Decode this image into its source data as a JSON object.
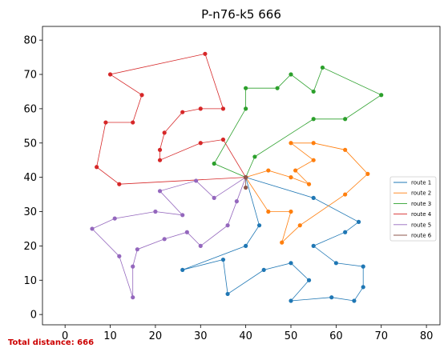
{
  "chart_data": {
    "type": "line",
    "title": "P-n76-k5 666",
    "xlabel": "",
    "ylabel": "",
    "xlim": [
      -5,
      83
    ],
    "ylim": [
      -3,
      84
    ],
    "xticks": [
      0,
      10,
      20,
      30,
      40,
      50,
      60,
      70,
      80
    ],
    "yticks": [
      0,
      10,
      20,
      30,
      40,
      50,
      60,
      70,
      80
    ],
    "grid": false,
    "legend_position": "right",
    "depot": [
      40,
      40
    ],
    "series": [
      {
        "name": "route 1",
        "color": "#1f77b4",
        "points": [
          [
            40,
            40
          ],
          [
            55,
            34
          ],
          [
            65,
            27
          ],
          [
            62,
            24
          ],
          [
            55,
            20
          ],
          [
            60,
            15
          ],
          [
            66,
            14
          ],
          [
            66,
            8
          ],
          [
            64,
            4
          ],
          [
            59,
            5
          ],
          [
            50,
            4
          ],
          [
            54,
            10
          ],
          [
            50,
            15
          ],
          [
            44,
            13
          ],
          [
            36,
            6
          ],
          [
            35,
            16
          ],
          [
            26,
            13
          ],
          [
            40,
            20
          ],
          [
            43,
            26
          ],
          [
            40,
            40
          ]
        ]
      },
      {
        "name": "route 2",
        "color": "#ff7f0e",
        "points": [
          [
            40,
            40
          ],
          [
            45,
            30
          ],
          [
            50,
            30
          ],
          [
            48,
            21
          ],
          [
            52,
            26
          ],
          [
            62,
            35
          ],
          [
            67,
            41
          ],
          [
            62,
            48
          ],
          [
            55,
            50
          ],
          [
            50,
            50
          ],
          [
            55,
            45
          ],
          [
            51,
            42
          ],
          [
            54,
            38
          ],
          [
            50,
            40
          ],
          [
            45,
            42
          ],
          [
            40,
            40
          ]
        ]
      },
      {
        "name": "route 3",
        "color": "#2ca02c",
        "points": [
          [
            40,
            40
          ],
          [
            42,
            46
          ],
          [
            55,
            57
          ],
          [
            62,
            57
          ],
          [
            70,
            64
          ],
          [
            57,
            72
          ],
          [
            55,
            65
          ],
          [
            50,
            70
          ],
          [
            47,
            66
          ],
          [
            40,
            66
          ],
          [
            40,
            60
          ],
          [
            33,
            44
          ],
          [
            40,
            40
          ]
        ]
      },
      {
        "name": "route 4",
        "color": "#d62728",
        "points": [
          [
            40,
            40
          ],
          [
            35,
            51
          ],
          [
            30,
            50
          ],
          [
            21,
            45
          ],
          [
            21,
            48
          ],
          [
            22,
            53
          ],
          [
            26,
            59
          ],
          [
            30,
            60
          ],
          [
            35,
            60
          ],
          [
            31,
            76
          ],
          [
            10,
            70
          ],
          [
            17,
            64
          ],
          [
            15,
            56
          ],
          [
            9,
            56
          ],
          [
            7,
            43
          ],
          [
            12,
            38
          ],
          [
            40,
            40
          ]
        ]
      },
      {
        "name": "route 5",
        "color": "#9467bd",
        "points": [
          [
            40,
            40
          ],
          [
            38,
            33
          ],
          [
            36,
            26
          ],
          [
            30,
            20
          ],
          [
            27,
            24
          ],
          [
            22,
            22
          ],
          [
            16,
            19
          ],
          [
            15,
            14
          ],
          [
            15,
            5
          ],
          [
            12,
            17
          ],
          [
            6,
            25
          ],
          [
            11,
            28
          ],
          [
            20,
            30
          ],
          [
            26,
            29
          ],
          [
            21,
            36
          ],
          [
            29,
            39
          ],
          [
            33,
            34
          ],
          [
            40,
            40
          ]
        ]
      },
      {
        "name": "route 6",
        "color": "#8c564b",
        "points": [
          [
            40,
            40
          ],
          [
            40,
            37
          ],
          [
            40,
            40
          ]
        ]
      }
    ]
  },
  "footer": {
    "total_distance_label": "Total distance: 666",
    "color": "#cc0000"
  }
}
